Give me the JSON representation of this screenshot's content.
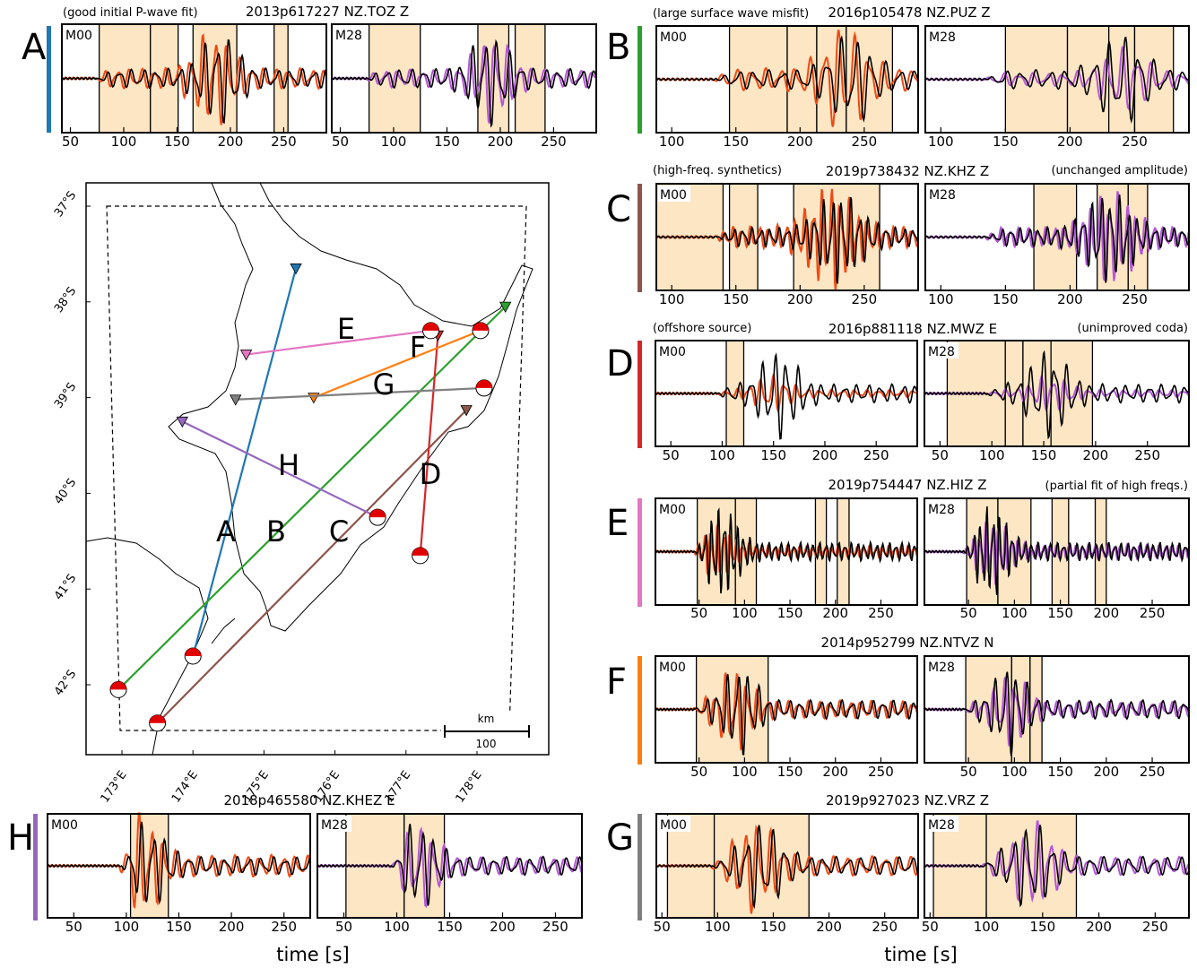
{
  "colors": {
    "window": "#fde6c4",
    "observed": "#000000",
    "m00": "#ee4b14",
    "m28": "#b357d6",
    "bar_A": "#1f77b4",
    "bar_B": "#2ca02c",
    "bar_C": "#8c564b",
    "bar_D": "#d62728",
    "bar_E": "#e377c2",
    "bar_F": "#ff7f0e",
    "bar_G": "#7f7f7f",
    "bar_H": "#9467bd"
  },
  "xlabel": "time [s]",
  "chart_data": [
    {
      "type": "line",
      "letter": "A",
      "event": "2013p617227",
      "station": "NZ.TOZ",
      "component": "Z",
      "annotation_left": "(good initial P-wave fit)",
      "annotation_right": "",
      "xlim": [
        42,
        290
      ],
      "xticks": [
        50,
        100,
        150,
        200,
        250
      ],
      "panels": [
        {
          "model": "M00",
          "windows": [
            [
              77,
              125
            ],
            [
              125,
              151
            ],
            [
              165,
              206
            ],
            [
              241,
              254
            ]
          ],
          "synthetic_amp": 0.9
        },
        {
          "model": "M28",
          "windows": [
            [
              77,
              125
            ],
            [
              179,
              208
            ],
            [
              214,
              242
            ]
          ],
          "synthetic_amp": 0.8
        }
      ],
      "observed_onset": 80,
      "observed_peak": 190
    },
    {
      "type": "line",
      "letter": "B",
      "event": "2016p105478",
      "station": "NZ.PUZ",
      "component": "Z",
      "annotation_left": "(large surface wave misfit)",
      "annotation_right": "",
      "xlim": [
        88,
        292
      ],
      "xticks": [
        100,
        150,
        200,
        250
      ],
      "panels": [
        {
          "model": "M00",
          "windows": [
            [
              145,
              190
            ],
            [
              190,
              213
            ],
            [
              213,
              236
            ],
            [
              236,
              272
            ]
          ],
          "synthetic_amp": 1.0
        },
        {
          "model": "M28",
          "windows": [
            [
              150,
              198
            ],
            [
              198,
              230
            ],
            [
              230,
              250
            ],
            [
              250,
              280
            ]
          ],
          "synthetic_amp": 0.6
        }
      ],
      "observed_onset": 140,
      "observed_peak": 240
    },
    {
      "type": "line",
      "letter": "C",
      "event": "2019p738432",
      "station": "NZ.KHZ",
      "component": "Z",
      "annotation_left": "(high-freq. synthetics)",
      "annotation_right": "(unchanged amplitude)",
      "xlim": [
        88,
        292
      ],
      "xticks": [
        100,
        150,
        200,
        250
      ],
      "panels": [
        {
          "model": "M00",
          "windows": [
            [
              88,
              140
            ],
            [
              145,
              167
            ],
            [
              195,
              262
            ]
          ],
          "synthetic_amp": 1.0
        },
        {
          "model": "M28",
          "windows": [
            [
              172,
              205
            ],
            [
              221,
              245
            ],
            [
              245,
              260
            ]
          ],
          "synthetic_amp": 0.9
        }
      ],
      "observed_onset": 140,
      "observed_peak": 230
    },
    {
      "type": "line",
      "letter": "D",
      "event": "2016p881118",
      "station": "NZ.MWZ",
      "component": "E",
      "annotation_left": "(offshore source)",
      "annotation_right": "(unimproved coda)",
      "xlim": [
        35,
        290
      ],
      "xticks": [
        50,
        100,
        150,
        200,
        250
      ],
      "panels": [
        {
          "model": "M00",
          "windows": [
            [
              104,
              121
            ]
          ],
          "synthetic_amp": 0.35
        },
        {
          "model": "M28",
          "windows": [
            [
              57,
              113
            ],
            [
              113,
              130
            ],
            [
              130,
              157
            ],
            [
              157,
              197
            ]
          ],
          "synthetic_amp": 0.35
        }
      ],
      "observed_onset": 100,
      "observed_peak": 155
    },
    {
      "type": "line",
      "letter": "E",
      "event": "2019p754447",
      "station": "NZ.HIZ",
      "component": "Z",
      "annotation_left": "",
      "annotation_right": "(partial fit of high freqs.)",
      "xlim": [
        2,
        290
      ],
      "xticks": [
        50,
        100,
        150,
        200,
        250
      ],
      "panels": [
        {
          "model": "M00",
          "windows": [
            [
              48,
              90
            ],
            [
              90,
              113
            ],
            [
              178,
              190
            ],
            [
              202,
              215
            ]
          ],
          "synthetic_amp": 0.5
        },
        {
          "model": "M28",
          "windows": [
            [
              48,
              82
            ],
            [
              82,
              118
            ],
            [
              141,
              159
            ],
            [
              188,
              200
            ]
          ],
          "synthetic_amp": 0.6
        }
      ],
      "observed_onset": 50,
      "observed_peak": 75
    },
    {
      "type": "line",
      "letter": "F",
      "event": "2014p952799",
      "station": "NZ.NTVZ",
      "component": "N",
      "annotation_left": "",
      "annotation_right": "",
      "xlim": [
        2,
        290
      ],
      "xticks": [
        50,
        100,
        150,
        200,
        250
      ],
      "panels": [
        {
          "model": "M00",
          "windows": [
            [
              47,
              126
            ]
          ],
          "synthetic_amp": 0.8
        },
        {
          "model": "M28",
          "windows": [
            [
              47,
              97
            ],
            [
              97,
              117
            ],
            [
              117,
              130
            ]
          ],
          "synthetic_amp": 0.7
        }
      ],
      "observed_onset": 50,
      "observed_peak": 95
    },
    {
      "type": "line",
      "letter": "G",
      "event": "2019p927023",
      "station": "NZ.VRZ",
      "component": "Z",
      "annotation_left": "",
      "annotation_right": "",
      "xlim": [
        45,
        280
      ],
      "xticks": [
        50,
        100,
        150,
        200,
        250
      ],
      "panels": [
        {
          "model": "M00",
          "windows": [
            [
              55,
              97
            ],
            [
              97,
              182
            ]
          ],
          "synthetic_amp": 0.9
        },
        {
          "model": "M28",
          "windows": [
            [
              53,
              100
            ],
            [
              100,
              180
            ]
          ],
          "synthetic_amp": 0.85
        }
      ],
      "observed_onset": 100,
      "observed_peak": 140
    },
    {
      "type": "line",
      "letter": "H",
      "event": "2018p465580",
      "station": "NZ.KHEZ",
      "component": "E",
      "annotation_left": "",
      "annotation_right": "",
      "xlim": [
        25,
        275
      ],
      "xticks": [
        50,
        100,
        150,
        200,
        250
      ],
      "panels": [
        {
          "model": "M00",
          "windows": [
            [
              104,
              140
            ]
          ],
          "synthetic_amp": 1.0
        },
        {
          "model": "M28",
          "windows": [
            [
              52,
              107
            ],
            [
              107,
              145
            ]
          ],
          "synthetic_amp": 0.8
        }
      ],
      "observed_onset": 100,
      "observed_peak": 120
    }
  ],
  "map": {
    "lat_ticks": [
      "37°S",
      "38°S",
      "39°S",
      "40°S",
      "41°S",
      "42°S"
    ],
    "lon_ticks": [
      "173°E",
      "174°E",
      "175°E",
      "176°E",
      "177°E",
      "178°E"
    ],
    "scale_label": "km",
    "scale_value": "100",
    "paths": [
      {
        "letter": "A",
        "station": [
          175.45,
          -37.65
        ],
        "event": [
          174.0,
          -41.7
        ]
      },
      {
        "letter": "B",
        "station": [
          178.4,
          -38.05
        ],
        "event": [
          172.95,
          -42.05
        ]
      },
      {
        "letter": "C",
        "station": [
          177.85,
          -39.13
        ],
        "event": [
          173.5,
          -42.4
        ]
      },
      {
        "letter": "D",
        "station": [
          177.45,
          -38.35
        ],
        "event": [
          177.2,
          -40.65
        ]
      },
      {
        "letter": "E",
        "station": [
          174.75,
          -38.55
        ],
        "event": [
          177.35,
          -38.3
        ]
      },
      {
        "letter": "F",
        "station": [
          175.7,
          -39.0
        ],
        "event": [
          178.05,
          -38.3
        ]
      },
      {
        "letter": "G",
        "station": [
          174.6,
          -39.02
        ],
        "event": [
          178.1,
          -38.9
        ]
      },
      {
        "letter": "H",
        "station": [
          173.85,
          -39.25
        ],
        "event": [
          176.6,
          -40.25
        ]
      }
    ]
  }
}
